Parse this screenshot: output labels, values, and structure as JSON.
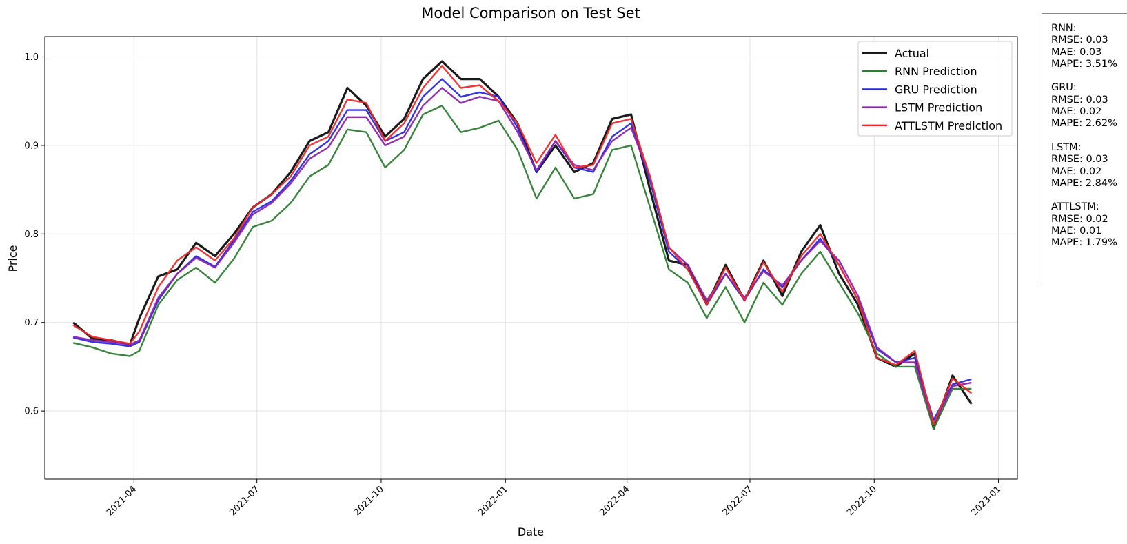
{
  "chart_data": {
    "type": "line",
    "title": "Model Comparison on Test Set",
    "xlabel": "Date",
    "ylabel": "Price",
    "xlim": [
      "2021-01-25",
      "2023-01-15"
    ],
    "ylim": [
      0.523,
      1.023
    ],
    "x_ticks": [
      "2021-04",
      "2021-07",
      "2021-10",
      "2022-01",
      "2022-04",
      "2022-07",
      "2022-10",
      "2023-01"
    ],
    "y_ticks": [
      "0.6",
      "0.7",
      "0.8",
      "0.9",
      "1.0"
    ],
    "grid": true,
    "legend_position": "top-right",
    "x": [
      "2021-02-15",
      "2021-03-01",
      "2021-03-15",
      "2021-03-29",
      "2021-04-05",
      "2021-04-19",
      "2021-05-03",
      "2021-05-17",
      "2021-05-31",
      "2021-06-14",
      "2021-06-28",
      "2021-07-12",
      "2021-07-26",
      "2021-08-09",
      "2021-08-23",
      "2021-09-06",
      "2021-09-20",
      "2021-10-04",
      "2021-10-18",
      "2021-11-01",
      "2021-11-15",
      "2021-11-29",
      "2021-12-13",
      "2021-12-27",
      "2022-01-10",
      "2022-01-24",
      "2022-02-07",
      "2022-02-21",
      "2022-03-07",
      "2022-03-21",
      "2022-04-04",
      "2022-04-18",
      "2022-05-02",
      "2022-05-16",
      "2022-05-30",
      "2022-06-13",
      "2022-06-27",
      "2022-07-11",
      "2022-07-25",
      "2022-08-08",
      "2022-08-22",
      "2022-09-05",
      "2022-09-19",
      "2022-10-03",
      "2022-10-17",
      "2022-10-31",
      "2022-11-14",
      "2022-11-28",
      "2022-12-12"
    ],
    "series": [
      {
        "name": "Actual",
        "color": "#1a1a1a",
        "values": [
          0.7,
          0.682,
          0.68,
          0.675,
          0.705,
          0.752,
          0.76,
          0.79,
          0.775,
          0.8,
          0.83,
          0.845,
          0.87,
          0.905,
          0.915,
          0.965,
          0.945,
          0.91,
          0.93,
          0.975,
          0.995,
          0.975,
          0.975,
          0.955,
          0.925,
          0.87,
          0.9,
          0.87,
          0.88,
          0.93,
          0.935,
          0.85,
          0.77,
          0.765,
          0.72,
          0.765,
          0.725,
          0.77,
          0.73,
          0.78,
          0.81,
          0.755,
          0.72,
          0.66,
          0.65,
          0.665,
          0.58,
          0.64,
          0.608
        ]
      },
      {
        "name": "RNN Prediction",
        "color": "#2e7d32",
        "values": [
          0.677,
          0.672,
          0.665,
          0.662,
          0.668,
          0.72,
          0.748,
          0.762,
          0.745,
          0.772,
          0.808,
          0.815,
          0.835,
          0.865,
          0.878,
          0.918,
          0.915,
          0.875,
          0.895,
          0.935,
          0.945,
          0.915,
          0.92,
          0.928,
          0.895,
          0.84,
          0.875,
          0.84,
          0.845,
          0.895,
          0.9,
          0.83,
          0.76,
          0.745,
          0.705,
          0.74,
          0.7,
          0.745,
          0.72,
          0.755,
          0.78,
          0.745,
          0.71,
          0.665,
          0.65,
          0.65,
          0.58,
          0.625,
          0.625
        ]
      },
      {
        "name": "GRU Prediction",
        "color": "#2727e6",
        "values": [
          0.683,
          0.678,
          0.676,
          0.673,
          0.678,
          0.725,
          0.755,
          0.775,
          0.763,
          0.793,
          0.825,
          0.837,
          0.86,
          0.89,
          0.905,
          0.94,
          0.94,
          0.905,
          0.915,
          0.955,
          0.975,
          0.955,
          0.96,
          0.955,
          0.92,
          0.87,
          0.905,
          0.875,
          0.87,
          0.91,
          0.925,
          0.86,
          0.78,
          0.76,
          0.72,
          0.755,
          0.725,
          0.76,
          0.74,
          0.77,
          0.795,
          0.765,
          0.725,
          0.67,
          0.655,
          0.66,
          0.59,
          0.63,
          0.636
        ]
      },
      {
        "name": "LSTM Prediction",
        "color": "#8e24aa",
        "values": [
          0.684,
          0.68,
          0.678,
          0.675,
          0.68,
          0.728,
          0.755,
          0.773,
          0.762,
          0.79,
          0.822,
          0.835,
          0.857,
          0.885,
          0.898,
          0.932,
          0.932,
          0.9,
          0.91,
          0.945,
          0.965,
          0.948,
          0.955,
          0.95,
          0.915,
          0.872,
          0.905,
          0.878,
          0.872,
          0.905,
          0.92,
          0.865,
          0.785,
          0.765,
          0.725,
          0.755,
          0.728,
          0.758,
          0.742,
          0.77,
          0.792,
          0.77,
          0.73,
          0.672,
          0.655,
          0.655,
          0.585,
          0.628,
          0.632
        ]
      },
      {
        "name": "ATTLSTM Prediction",
        "color": "#ee2a2a",
        "values": [
          0.697,
          0.684,
          0.68,
          0.676,
          0.69,
          0.74,
          0.77,
          0.785,
          0.77,
          0.795,
          0.83,
          0.845,
          0.865,
          0.9,
          0.91,
          0.952,
          0.948,
          0.905,
          0.925,
          0.965,
          0.99,
          0.965,
          0.968,
          0.95,
          0.925,
          0.88,
          0.912,
          0.875,
          0.878,
          0.925,
          0.93,
          0.865,
          0.785,
          0.76,
          0.72,
          0.762,
          0.725,
          0.768,
          0.735,
          0.775,
          0.8,
          0.765,
          0.725,
          0.66,
          0.652,
          0.668,
          0.585,
          0.637,
          0.62
        ]
      }
    ]
  },
  "stats": [
    {
      "model": "RNN:",
      "rmse": "RMSE: 0.03",
      "mae": "MAE: 0.03",
      "mape": "MAPE: 3.51%"
    },
    {
      "model": "GRU:",
      "rmse": "RMSE: 0.03",
      "mae": "MAE: 0.02",
      "mape": "MAPE: 2.62%"
    },
    {
      "model": "LSTM:",
      "rmse": "RMSE: 0.03",
      "mae": "MAE: 0.02",
      "mape": "MAPE: 2.84%"
    },
    {
      "model": "ATTLSTM:",
      "rmse": "RMSE: 0.02",
      "mae": "MAE: 0.01",
      "mape": "MAPE: 1.79%"
    }
  ]
}
